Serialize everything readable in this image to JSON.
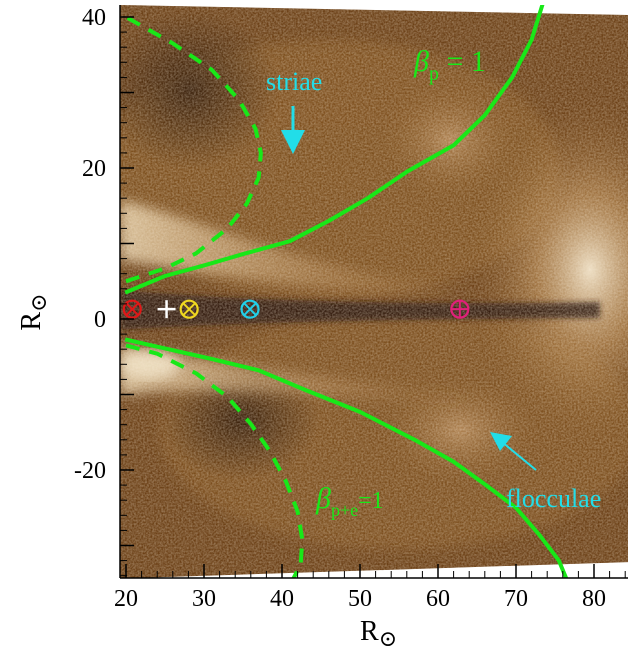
{
  "chart_data": {
    "type": "line",
    "title": "",
    "xlabel": "R",
    "ylabel": "R",
    "axis_unit_symbol": "⊙",
    "xlim": [
      19,
      87
    ],
    "ylim": [
      -34.5,
      42
    ],
    "x_ticks": [
      20,
      30,
      40,
      50,
      60,
      70,
      80
    ],
    "y_ticks": [
      -20,
      0,
      20,
      40
    ],
    "grid": false,
    "colors": {
      "background_base": "#5a3410",
      "curve": "#18e818",
      "annotation": "#22dde8",
      "marker_red": "#e01818",
      "marker_yellow": "#f0d820",
      "marker_cyan": "#22d0e8",
      "marker_magenta": "#e0207a",
      "marker_white": "#ffffff"
    },
    "series": [
      {
        "id": "beta_p_upper",
        "style": "solid",
        "x": [
          19.9,
          25,
          30,
          35,
          41,
          46,
          51,
          56,
          62,
          66,
          69.5,
          72,
          73.5
        ],
        "y": [
          3.5,
          5.7,
          7.1,
          8.6,
          10.3,
          13,
          16,
          19.5,
          23,
          27,
          32,
          37,
          42
        ]
      },
      {
        "id": "beta_p_lower",
        "style": "solid",
        "x": [
          19.9,
          25,
          31,
          37,
          43,
          50,
          57,
          62,
          66,
          70,
          73,
          75.5,
          76.5
        ],
        "y": [
          -2.7,
          -3.9,
          -5.3,
          -6.8,
          -9.4,
          -12.3,
          -16,
          -18.9,
          -21.9,
          -25,
          -28.6,
          -32,
          -34.5
        ]
      },
      {
        "id": "beta_pe_upper",
        "style": "dashed",
        "x": [
          20,
          25,
          29,
          33,
          35.5,
          37,
          37.3,
          36.6,
          34.5,
          31,
          26,
          20
        ],
        "y": [
          5,
          6.7,
          8.7,
          12,
          15.3,
          18.7,
          22,
          25.2,
          29,
          33,
          36.5,
          40
        ]
      },
      {
        "id": "beta_pe_lower",
        "style": "dashed",
        "x": [
          20,
          24,
          29,
          33,
          36,
          38.5,
          40.5,
          42,
          42.6,
          42.4,
          41.4
        ],
        "y": [
          -3.5,
          -4.6,
          -7.2,
          -10.3,
          -13.9,
          -17.6,
          -21.5,
          -25.5,
          -29.2,
          -32.5,
          -34.5
        ]
      }
    ],
    "markers": [
      {
        "symbol": "⊗",
        "color_key": "marker_red",
        "x": 20.8,
        "y": 1.3
      },
      {
        "symbol": "+",
        "color_key": "marker_white",
        "x": 25.2,
        "y": 1.3
      },
      {
        "symbol": "⊗",
        "color_key": "marker_yellow",
        "x": 28.1,
        "y": 1.3
      },
      {
        "symbol": "⊗",
        "color_key": "marker_cyan",
        "x": 35.9,
        "y": 1.3
      },
      {
        "symbol": "⊕",
        "color_key": "marker_magenta",
        "x": 62.8,
        "y": 1.3
      }
    ],
    "annotations": [
      {
        "key": "striae",
        "text": "striae"
      },
      {
        "key": "flocculae",
        "text": "flocculae"
      },
      {
        "key": "beta_p",
        "base": "β",
        "sub": "p",
        "suffix": " = 1"
      },
      {
        "key": "beta_pe",
        "base": "β",
        "sub": "p+e",
        "suffix": "=1"
      }
    ]
  }
}
